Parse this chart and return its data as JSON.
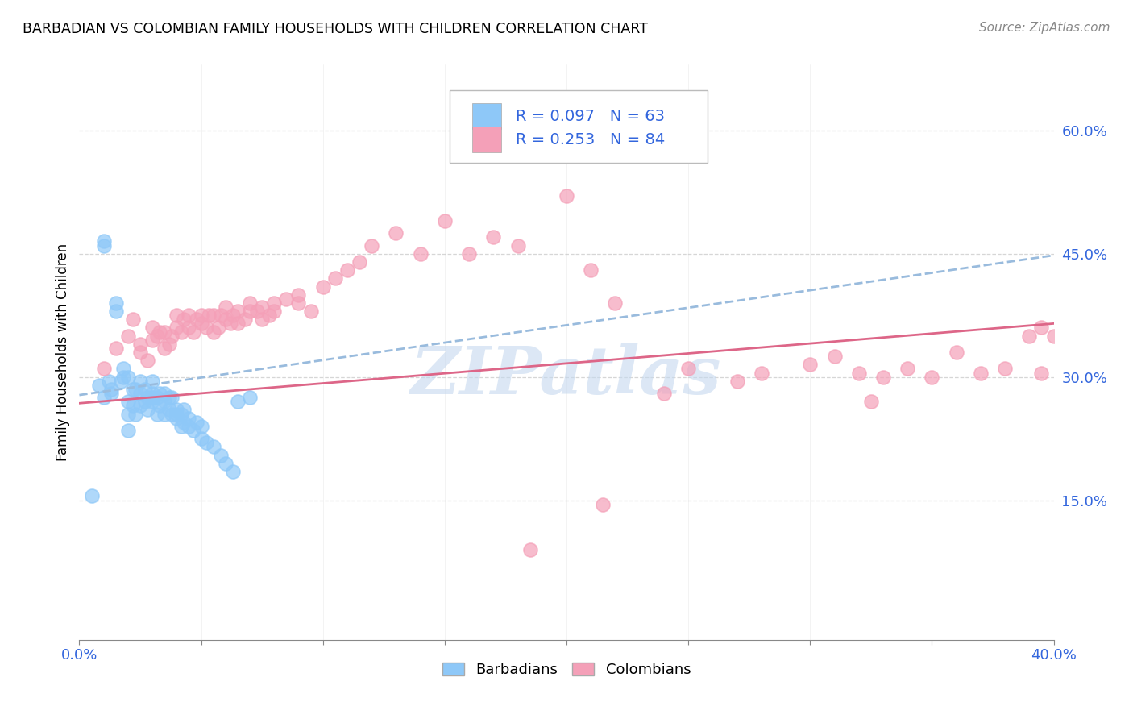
{
  "title": "BARBADIAN VS COLOMBIAN FAMILY HOUSEHOLDS WITH CHILDREN CORRELATION CHART",
  "source": "Source: ZipAtlas.com",
  "ylabel": "Family Households with Children",
  "xlim": [
    0.0,
    0.4
  ],
  "ylim": [
    -0.02,
    0.68
  ],
  "xtick_positions": [
    0.0,
    0.05,
    0.1,
    0.15,
    0.2,
    0.25,
    0.3,
    0.35,
    0.4
  ],
  "ytick_right_positions": [
    0.15,
    0.3,
    0.45,
    0.6
  ],
  "ytick_right_labels": [
    "15.0%",
    "30.0%",
    "45.0%",
    "60.0%"
  ],
  "barbadian_color": "#8ec8f8",
  "colombian_color": "#f4a0b8",
  "barbadian_R": 0.097,
  "barbadian_N": 63,
  "colombian_R": 0.253,
  "colombian_N": 84,
  "legend_color": "#3366dd",
  "watermark_text": "ZIPatlas",
  "watermark_color": "#c5d8ef",
  "grid_color": "#cccccc",
  "trend_blue_color": "#99bbdd",
  "trend_pink_color": "#dd6688",
  "barbadian_x": [
    0.005,
    0.008,
    0.01,
    0.01,
    0.01,
    0.012,
    0.013,
    0.013,
    0.015,
    0.015,
    0.017,
    0.018,
    0.018,
    0.02,
    0.02,
    0.02,
    0.02,
    0.022,
    0.022,
    0.023,
    0.023,
    0.025,
    0.025,
    0.025,
    0.027,
    0.027,
    0.028,
    0.028,
    0.03,
    0.03,
    0.03,
    0.03,
    0.032,
    0.032,
    0.033,
    0.033,
    0.035,
    0.035,
    0.035,
    0.037,
    0.037,
    0.038,
    0.038,
    0.04,
    0.04,
    0.04,
    0.042,
    0.042,
    0.043,
    0.043,
    0.045,
    0.045,
    0.047,
    0.048,
    0.05,
    0.05,
    0.052,
    0.055,
    0.058,
    0.06,
    0.063,
    0.065,
    0.07
  ],
  "barbadian_y": [
    0.155,
    0.29,
    0.46,
    0.465,
    0.275,
    0.295,
    0.28,
    0.285,
    0.38,
    0.39,
    0.295,
    0.3,
    0.31,
    0.235,
    0.255,
    0.27,
    0.3,
    0.265,
    0.285,
    0.255,
    0.285,
    0.265,
    0.28,
    0.295,
    0.27,
    0.285,
    0.26,
    0.275,
    0.27,
    0.275,
    0.28,
    0.295,
    0.255,
    0.275,
    0.265,
    0.28,
    0.255,
    0.27,
    0.28,
    0.26,
    0.275,
    0.255,
    0.275,
    0.25,
    0.255,
    0.26,
    0.24,
    0.255,
    0.245,
    0.26,
    0.24,
    0.25,
    0.235,
    0.245,
    0.225,
    0.24,
    0.22,
    0.215,
    0.205,
    0.195,
    0.185,
    0.27,
    0.275
  ],
  "colombian_x": [
    0.01,
    0.015,
    0.02,
    0.022,
    0.025,
    0.025,
    0.028,
    0.03,
    0.03,
    0.032,
    0.033,
    0.035,
    0.035,
    0.037,
    0.038,
    0.04,
    0.04,
    0.042,
    0.043,
    0.045,
    0.045,
    0.047,
    0.048,
    0.05,
    0.05,
    0.052,
    0.053,
    0.055,
    0.055,
    0.057,
    0.058,
    0.06,
    0.06,
    0.062,
    0.063,
    0.065,
    0.065,
    0.068,
    0.07,
    0.07,
    0.073,
    0.075,
    0.075,
    0.078,
    0.08,
    0.08,
    0.085,
    0.09,
    0.09,
    0.095,
    0.1,
    0.105,
    0.11,
    0.115,
    0.12,
    0.13,
    0.14,
    0.15,
    0.16,
    0.17,
    0.18,
    0.2,
    0.21,
    0.22,
    0.24,
    0.25,
    0.27,
    0.28,
    0.3,
    0.31,
    0.32,
    0.33,
    0.34,
    0.35,
    0.36,
    0.37,
    0.38,
    0.39,
    0.395,
    0.4,
    0.215,
    0.185,
    0.325,
    0.395
  ],
  "colombian_y": [
    0.31,
    0.335,
    0.35,
    0.37,
    0.33,
    0.34,
    0.32,
    0.345,
    0.36,
    0.35,
    0.355,
    0.335,
    0.355,
    0.34,
    0.35,
    0.36,
    0.375,
    0.355,
    0.37,
    0.36,
    0.375,
    0.355,
    0.37,
    0.365,
    0.375,
    0.36,
    0.375,
    0.355,
    0.375,
    0.36,
    0.375,
    0.37,
    0.385,
    0.365,
    0.375,
    0.365,
    0.38,
    0.37,
    0.38,
    0.39,
    0.38,
    0.37,
    0.385,
    0.375,
    0.39,
    0.38,
    0.395,
    0.39,
    0.4,
    0.38,
    0.41,
    0.42,
    0.43,
    0.44,
    0.46,
    0.475,
    0.45,
    0.49,
    0.45,
    0.47,
    0.46,
    0.52,
    0.43,
    0.39,
    0.28,
    0.31,
    0.295,
    0.305,
    0.315,
    0.325,
    0.305,
    0.3,
    0.31,
    0.3,
    0.33,
    0.305,
    0.31,
    0.35,
    0.36,
    0.35,
    0.145,
    0.09,
    0.27,
    0.305
  ],
  "barbadian_trendline_x": [
    0.0,
    0.4
  ],
  "barbadian_trendline_y": [
    0.278,
    0.448
  ],
  "colombian_trendline_x": [
    0.0,
    0.4
  ],
  "colombian_trendline_y": [
    0.268,
    0.365
  ]
}
